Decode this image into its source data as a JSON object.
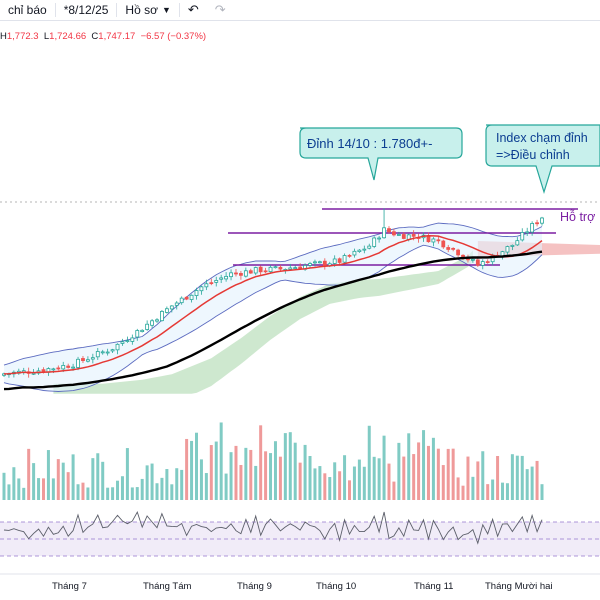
{
  "toolbar": {
    "indicators_label": "chỉ báo",
    "date_label": "*8/12/25",
    "layout_label": "Hồ sơ"
  },
  "ohlc": {
    "h_prefix": "H",
    "h": "1,772.3",
    "l_prefix": "L",
    "l": "1,724.66",
    "c_prefix": "C",
    "c": "1,747.17",
    "change": "−6.57 (−0.37%)"
  },
  "annotations": {
    "peak_label": "Đỉnh 14/10 : 1.780đ+-",
    "index_label_line1": "Index chạm đỉnh",
    "index_label_line2": "=>Điều chỉnh",
    "support_label": "Hỗ trợ"
  },
  "colors": {
    "up": "#26a69a",
    "down": "#ef5350",
    "ma_short": "#e53935",
    "ma_long": "#000000",
    "bollinger": "#5c6bc0",
    "cloud_green": "#a5d6a7",
    "cloud_red": "#ef9a9a",
    "level_line": "#7b1fa2",
    "callout_fill": "#c8f0ec",
    "callout_border": "#26a69a",
    "rsi_band": "#ede7f6"
  },
  "chart_data": {
    "type": "candlestick",
    "series": [
      {
        "name": "",
        "x": [
          "Tháng 7",
          "Tháng Tám",
          "Tháng 9",
          "Tháng 10",
          "Tháng 11",
          "Tháng Mười hai"
        ],
        "values": [
          1380,
          1540,
          1640,
          1720,
          1640,
          1760
        ]
      }
    ],
    "x_ticks": [
      "Tháng 7",
      "Tháng Tám",
      "Tháng 9",
      "Tháng 10",
      "Tháng 11",
      "Tháng Mười hai"
    ],
    "levels": [
      {
        "value": 1780
      },
      {
        "value": 1720
      },
      {
        "value": 1640
      }
    ],
    "panes": [
      "price",
      "volume",
      "rsi"
    ]
  }
}
